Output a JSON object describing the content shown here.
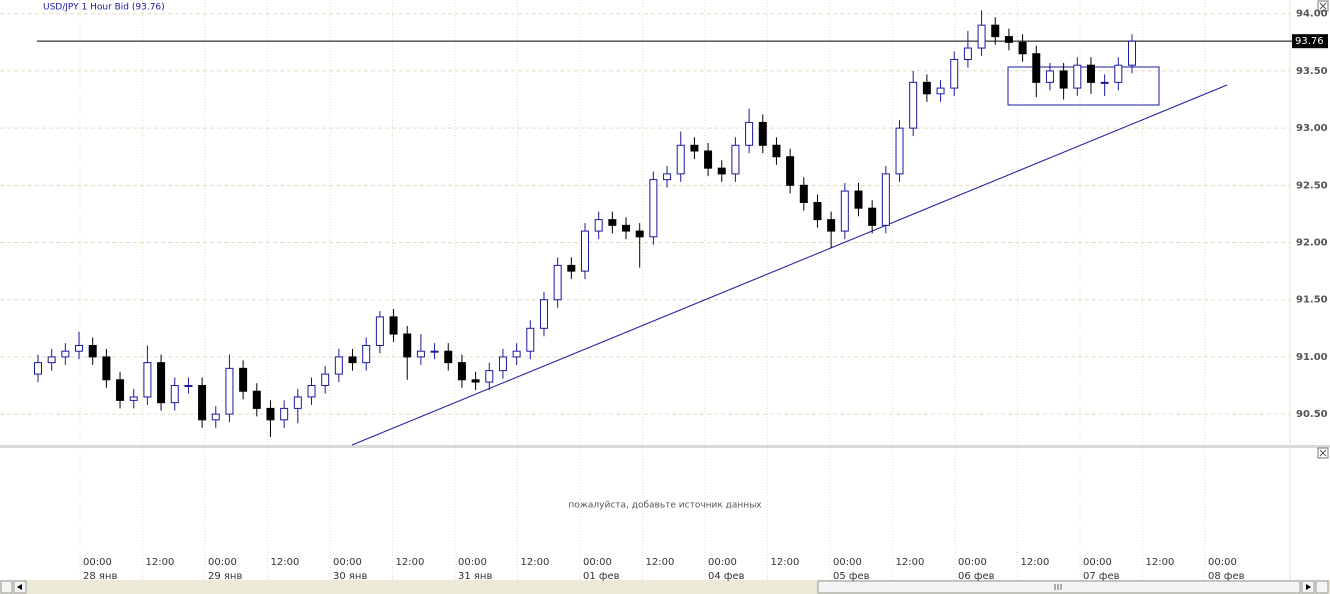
{
  "chart_data": {
    "type": "candlestick",
    "title": "USD/JPY 1 Hour Bid (93.76)",
    "last": 93.76,
    "open": [
      90.85,
      90.95,
      91.0,
      91.05,
      91.1,
      91.0,
      90.8,
      90.62,
      90.65,
      90.95,
      90.6,
      90.75,
      90.75,
      90.45,
      90.5,
      90.9,
      90.7,
      90.55,
      90.45,
      90.55,
      90.65,
      90.75,
      90.85,
      91.0,
      90.95,
      91.1,
      91.35,
      91.2,
      91.0,
      91.05,
      91.05,
      90.95,
      90.8,
      90.78,
      90.88,
      91.0,
      91.05,
      91.25,
      91.5,
      91.8,
      91.75,
      92.1,
      92.2,
      92.15,
      92.1,
      92.05,
      92.55,
      92.6,
      92.85,
      92.8,
      92.65,
      92.6,
      92.85,
      93.05,
      92.85,
      92.75,
      92.5,
      92.35,
      92.2,
      92.1,
      92.45,
      92.3,
      92.15,
      92.6,
      93.0,
      93.4,
      93.3,
      93.35,
      93.6,
      93.7,
      93.9,
      93.8,
      93.75,
      93.65,
      93.4,
      93.5,
      93.35,
      93.55,
      93.4,
      93.4,
      93.55
    ],
    "high": [
      91.02,
      91.07,
      91.12,
      91.22,
      91.17,
      91.07,
      90.87,
      90.72,
      91.1,
      91.02,
      90.82,
      90.82,
      90.82,
      90.57,
      91.02,
      90.97,
      90.77,
      90.62,
      90.62,
      90.72,
      90.82,
      90.92,
      91.07,
      91.07,
      91.17,
      91.4,
      91.42,
      91.27,
      91.2,
      91.12,
      91.12,
      91.02,
      90.87,
      90.95,
      91.07,
      91.12,
      91.32,
      91.57,
      91.87,
      91.87,
      92.17,
      92.27,
      92.27,
      92.22,
      92.17,
      92.62,
      92.67,
      92.97,
      92.92,
      92.87,
      92.72,
      92.92,
      93.17,
      93.12,
      92.92,
      92.82,
      92.57,
      92.42,
      92.27,
      92.52,
      92.52,
      92.37,
      92.67,
      93.07,
      93.5,
      93.47,
      93.42,
      93.67,
      93.85,
      94.03,
      93.97,
      93.87,
      93.82,
      93.72,
      93.57,
      93.57,
      93.62,
      93.62,
      93.47,
      93.62,
      93.82
    ],
    "low": [
      90.78,
      90.88,
      90.93,
      90.98,
      90.93,
      90.73,
      90.55,
      90.55,
      90.58,
      90.53,
      90.53,
      90.68,
      90.38,
      90.38,
      90.43,
      90.63,
      90.48,
      90.3,
      90.38,
      90.42,
      90.58,
      90.68,
      90.78,
      90.88,
      90.88,
      91.03,
      91.13,
      90.8,
      90.93,
      90.98,
      90.88,
      90.73,
      90.71,
      90.71,
      90.81,
      90.93,
      90.98,
      91.18,
      91.43,
      91.68,
      91.68,
      92.03,
      92.08,
      92.03,
      91.78,
      91.98,
      92.48,
      92.53,
      92.73,
      92.58,
      92.53,
      92.53,
      92.78,
      92.78,
      92.68,
      92.43,
      92.28,
      92.13,
      91.95,
      92.03,
      92.23,
      92.08,
      92.08,
      92.53,
      92.93,
      93.23,
      93.23,
      93.28,
      93.53,
      93.63,
      93.73,
      93.68,
      93.58,
      93.27,
      93.33,
      93.25,
      93.28,
      93.3,
      93.28,
      93.33,
      93.48
    ],
    "close": [
      90.95,
      91.0,
      91.05,
      91.1,
      91.0,
      90.8,
      90.62,
      90.65,
      90.95,
      90.6,
      90.75,
      90.75,
      90.45,
      90.5,
      90.9,
      90.7,
      90.55,
      90.45,
      90.55,
      90.65,
      90.75,
      90.85,
      91.0,
      90.95,
      91.1,
      91.35,
      91.2,
      91.0,
      91.05,
      91.05,
      90.95,
      90.8,
      90.78,
      90.88,
      91.0,
      91.05,
      91.25,
      91.5,
      91.8,
      91.75,
      92.1,
      92.2,
      92.15,
      92.1,
      92.05,
      92.55,
      92.6,
      92.85,
      92.8,
      92.65,
      92.6,
      92.85,
      93.05,
      92.85,
      92.75,
      92.5,
      92.35,
      92.2,
      92.1,
      92.45,
      92.3,
      92.15,
      92.6,
      93.0,
      93.4,
      93.3,
      93.35,
      93.6,
      93.7,
      93.9,
      93.8,
      93.75,
      93.65,
      93.4,
      93.5,
      93.35,
      93.55,
      93.4,
      93.4,
      93.55,
      93.76
    ],
    "up_color": "#ffffff",
    "down_color": "#000000",
    "outline_color": "#1a1aa0",
    "ylim": [
      90.23,
      94.12
    ],
    "yticks": [
      {
        "value": 90.5,
        "label": "90.50"
      },
      {
        "value": 91,
        "label": "91.00"
      },
      {
        "value": 91.5,
        "label": "91.50"
      },
      {
        "value": 92,
        "label": "92.00"
      },
      {
        "value": 92.5,
        "label": "92.50"
      },
      {
        "value": 93,
        "label": "93.00"
      },
      {
        "value": 93.5,
        "label": "93.50"
      },
      {
        "value": 94,
        "label": "94.00"
      }
    ],
    "xticks": [
      {
        "time": "00:00",
        "date": "28 янв"
      },
      {
        "time": "12:00"
      },
      {
        "time": "00:00",
        "date": "29 янв"
      },
      {
        "time": "12:00"
      },
      {
        "time": "00:00",
        "date": "30 янв"
      },
      {
        "time": "12:00"
      },
      {
        "time": "00:00",
        "date": "31 янв"
      },
      {
        "time": "12:00"
      },
      {
        "time": "00:00",
        "date": "01 фев"
      },
      {
        "time": "12:00"
      },
      {
        "time": "00:00",
        "date": "04 фев"
      },
      {
        "time": "12:00"
      },
      {
        "time": "00:00",
        "date": "05 фев"
      },
      {
        "time": "12:00"
      },
      {
        "time": "00:00",
        "date": "06 фев"
      },
      {
        "time": "12:00"
      },
      {
        "time": "00:00",
        "date": "07 фев"
      },
      {
        "time": "12:00"
      },
      {
        "time": "00:00",
        "date": "08 фев"
      }
    ],
    "grid": true,
    "empty_panel_text": "пожалуйста, добавьте источник данных"
  }
}
